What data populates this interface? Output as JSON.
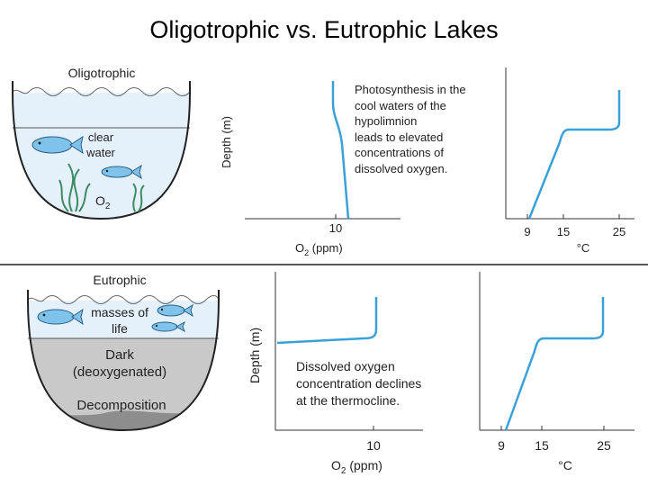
{
  "title": "Oligotrophic vs. Eutrophic Lakes",
  "colors": {
    "water": "#e4f1fb",
    "curve": "#3aa0d8",
    "fish": "#7fc2ea",
    "dark_layer": "#c9c9c9",
    "sediment": "#8d8d8d",
    "plant": "#3d8a63"
  },
  "oligotrophic": {
    "label": "Oligotrophic",
    "lake_text": [
      "clear",
      "water"
    ],
    "o2_label": "O",
    "o2_sub": "2",
    "depth_label": "Depth (m)",
    "note": [
      "Photosynthesis in the",
      "cool waters of the",
      "hypolimnion",
      "leads to elevated",
      "concentrations of",
      "dissolved oxygen."
    ],
    "o2_axis": {
      "label_prefix": "O",
      "label_sub": "2",
      "label_suffix": " (ppm)",
      "ticks": [
        "10"
      ]
    },
    "temp_axis": {
      "label": "°C",
      "ticks": [
        "9",
        "15",
        "25"
      ]
    }
  },
  "eutrophic": {
    "label": "Eutrophic",
    "lake_text_top": [
      "masses of",
      "life"
    ],
    "lake_text_mid": [
      "Dark",
      "(deoxygenated)"
    ],
    "lake_text_bottom": "Decomposition",
    "depth_label": "Depth (m)",
    "note": [
      "Dissolved oxygen",
      "concentration declines",
      "at the thermocline."
    ],
    "o2_axis": {
      "label_prefix": "O",
      "label_sub": "2",
      "label_suffix": " (ppm)",
      "ticks": [
        "10"
      ]
    },
    "temp_axis": {
      "label": "°C",
      "ticks": [
        "9",
        "15",
        "25"
      ]
    }
  }
}
